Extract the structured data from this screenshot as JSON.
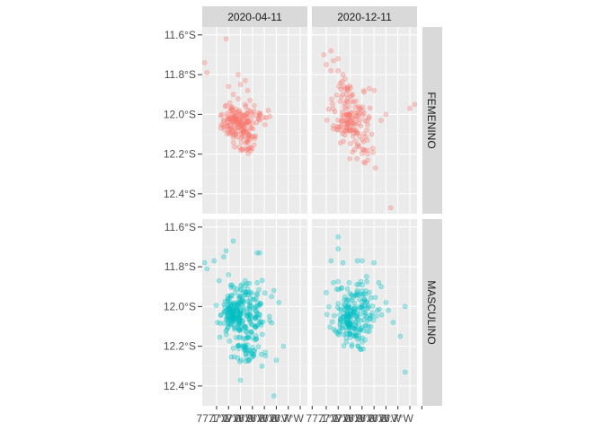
{
  "chart_data": {
    "type": "scatter",
    "facet_cols": [
      "2020-04-11",
      "2020-12-11"
    ],
    "facet_rows": [
      "FEMENINO",
      "MASCULINO"
    ],
    "colors": {
      "FEMENINO": "#F8766D",
      "MASCULINO": "#00BFC4"
    },
    "panel_bg": "#EBEBEB",
    "strip_bg": "#D9D9D9",
    "grid": true,
    "legend": "none",
    "xlim": [
      -77.21,
      -76.77
    ],
    "ylim": [
      -12.5,
      -11.56
    ],
    "x_ticks": [
      -77.15,
      -77.1,
      -77.05,
      -77.0,
      -76.95,
      -76.9,
      -76.85,
      -76.8,
      -76.75
    ],
    "x_tick_labels": [
      "77.1°W",
      "77.1°W",
      "77.0°W",
      "76.9°W",
      "76.8°W",
      "76.8°W",
      "76.7°W"
    ],
    "x_tick_label_values": [
      -77.16,
      -77.11,
      -77.06,
      -77.01,
      -76.96,
      -76.91,
      -76.86
    ],
    "y_ticks": [
      -11.6,
      -11.8,
      -12.0,
      -12.2,
      -12.4
    ],
    "y_tick_labels": [
      "11.6°S",
      "11.8°S",
      "12.0°S",
      "12.2°S",
      "12.4°S"
    ],
    "panels": [
      {
        "col": "2020-04-11",
        "row": "FEMENINO",
        "points": [
          [
            -77.2,
            -11.74
          ],
          [
            -77.19,
            -11.79
          ],
          [
            -77.11,
            -11.62
          ],
          [
            -77.1,
            -11.86
          ],
          [
            -77.08,
            -11.9
          ],
          [
            -77.06,
            -11.8
          ],
          [
            -77.05,
            -11.85
          ],
          [
            -77.03,
            -11.83
          ],
          [
            -77.02,
            -11.88
          ],
          [
            -77.03,
            -11.95
          ],
          [
            -77.01,
            -11.93
          ]
        ],
        "clusters": [
          {
            "center": [
              -77.07,
              -12.05
            ],
            "spread": [
              0.03,
              0.035
            ],
            "n": 95
          },
          {
            "center": [
              -77.03,
              -12.03
            ],
            "spread": [
              0.025,
              0.05
            ],
            "n": 35
          },
          {
            "center": [
              -77.02,
              -12.13
            ],
            "spread": [
              0.025,
              0.04
            ],
            "n": 35
          },
          {
            "center": [
              -76.97,
              -12.01
            ],
            "spread": [
              0.025,
              0.02
            ],
            "n": 14
          },
          {
            "center": [
              -77.1,
              -11.97
            ],
            "spread": [
              0.02,
              0.03
            ],
            "n": 10
          }
        ]
      },
      {
        "col": "2020-12-11",
        "row": "FEMENINO",
        "points": [
          [
            -77.16,
            -11.7
          ],
          [
            -77.15,
            -11.75
          ],
          [
            -77.13,
            -11.78
          ],
          [
            -77.13,
            -11.68
          ],
          [
            -77.12,
            -11.73
          ],
          [
            -77.1,
            -11.78
          ],
          [
            -77.1,
            -11.72
          ],
          [
            -77.08,
            -11.8
          ],
          [
            -76.97,
            -11.87
          ],
          [
            -76.95,
            -11.88
          ],
          [
            -76.92,
            -12.03
          ],
          [
            -76.9,
            -12.0
          ],
          [
            -76.8,
            -11.97
          ],
          [
            -76.78,
            -11.95
          ],
          [
            -76.88,
            -12.47
          ],
          [
            -76.98,
            -12.08
          ],
          [
            -76.96,
            -12.1
          ]
        ],
        "clusters": [
          {
            "center": [
              -77.06,
              -12.04
            ],
            "spread": [
              0.03,
              0.045
            ],
            "n": 70
          },
          {
            "center": [
              -77.02,
              -12.02
            ],
            "spread": [
              0.03,
              0.06
            ],
            "n": 40
          },
          {
            "center": [
              -77.0,
              -12.18
            ],
            "spread": [
              0.025,
              0.035
            ],
            "n": 20
          },
          {
            "center": [
              -77.08,
              -11.9
            ],
            "spread": [
              0.03,
              0.04
            ],
            "n": 25
          }
        ]
      },
      {
        "col": "2020-04-11",
        "row": "MASCULINO",
        "points": [
          [
            -77.2,
            -11.78
          ],
          [
            -77.19,
            -11.81
          ],
          [
            -77.16,
            -11.77
          ],
          [
            -77.12,
            -11.75
          ],
          [
            -77.11,
            -11.72
          ],
          [
            -77.08,
            -11.67
          ],
          [
            -76.98,
            -11.73
          ],
          [
            -76.97,
            -11.73
          ],
          [
            -77.03,
            -11.87
          ],
          [
            -76.98,
            -11.88
          ],
          [
            -76.92,
            -11.95
          ],
          [
            -76.91,
            -11.92
          ],
          [
            -76.89,
            -11.98
          ],
          [
            -76.87,
            -12.2
          ],
          [
            -76.9,
            -12.27
          ],
          [
            -76.96,
            -12.3
          ],
          [
            -76.91,
            -12.45
          ],
          [
            -77.14,
            -11.87
          ],
          [
            -77.1,
            -11.84
          ]
        ],
        "clusters": [
          {
            "center": [
              -77.08,
              -12.04
            ],
            "spread": [
              0.025,
              0.045
            ],
            "n": 130
          },
          {
            "center": [
              -77.03,
              -12.13
            ],
            "spread": [
              0.035,
              0.06
            ],
            "n": 80
          },
          {
            "center": [
              -77.03,
              -11.95
            ],
            "spread": [
              0.035,
              0.04
            ],
            "n": 50
          },
          {
            "center": [
              -76.98,
              -12.05
            ],
            "spread": [
              0.03,
              0.05
            ],
            "n": 30
          },
          {
            "center": [
              -77.01,
              -12.23
            ],
            "spread": [
              0.03,
              0.03
            ],
            "n": 25
          }
        ]
      },
      {
        "col": "2020-12-11",
        "row": "MASCULINO",
        "points": [
          [
            -77.1,
            -11.65
          ],
          [
            -77.1,
            -11.71
          ],
          [
            -77.13,
            -11.77
          ],
          [
            -77.08,
            -11.78
          ],
          [
            -77.02,
            -11.77
          ],
          [
            -77.0,
            -11.77
          ],
          [
            -76.95,
            -11.78
          ],
          [
            -76.93,
            -11.88
          ],
          [
            -76.92,
            -11.9
          ],
          [
            -76.9,
            -11.98
          ],
          [
            -76.89,
            -12.02
          ],
          [
            -76.82,
            -12.0
          ],
          [
            -76.87,
            -12.08
          ],
          [
            -76.84,
            -12.15
          ],
          [
            -76.82,
            -12.33
          ],
          [
            -77.15,
            -11.93
          ],
          [
            -77.12,
            -11.88
          ]
        ],
        "clusters": [
          {
            "center": [
              -77.06,
              -12.05
            ],
            "spread": [
              0.03,
              0.045
            ],
            "n": 100
          },
          {
            "center": [
              -77.04,
              -12.14
            ],
            "spread": [
              0.03,
              0.04
            ],
            "n": 50
          },
          {
            "center": [
              -77.03,
              -11.93
            ],
            "spread": [
              0.035,
              0.04
            ],
            "n": 40
          },
          {
            "center": [
              -76.97,
              -12.04
            ],
            "spread": [
              0.03,
              0.04
            ],
            "n": 30
          }
        ]
      }
    ]
  }
}
